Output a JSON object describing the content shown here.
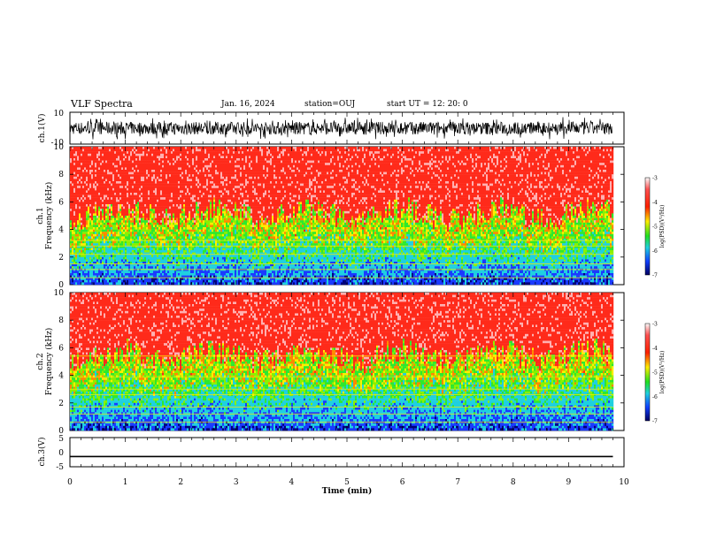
{
  "header": {
    "title": "VLF Spectra",
    "date": "Jan. 16, 2024",
    "station": "station=OUJ",
    "start": "start UT =  12: 20: 0"
  },
  "chart_data": [
    {
      "type": "line",
      "name": "ch1-waveform",
      "ylabel": "ch.1(V)",
      "ylim": [
        -10,
        10
      ],
      "yticks": [
        "10",
        "-10"
      ],
      "xlim": [
        0,
        10
      ],
      "description_values": {
        "baseline": 0,
        "approx_range": [
          -6,
          6
        ]
      }
    },
    {
      "type": "heatmap",
      "name": "ch1-spectrogram",
      "ylabel": "ch.1 Frequency (kHz)",
      "ylabel_top": "ch.1",
      "ylabel_bottom": "Frequency (kHz)",
      "ylim": [
        0,
        10
      ],
      "yticks": [
        "0",
        "2",
        "4",
        "6",
        "8",
        "10"
      ],
      "xlim": [
        0,
        9.8
      ],
      "colorbar": {
        "label": "log(PSD)(V²/Hz)",
        "range": [
          -7,
          -3
        ],
        "ticks": [
          "-3",
          "-4",
          "-5",
          "-6",
          "-7"
        ]
      },
      "bands_khz": [
        0.5,
        1.1,
        1.5,
        2.2,
        2.8,
        3.2
      ],
      "transition_khz": 4.5
    },
    {
      "type": "heatmap",
      "name": "ch2-spectrogram",
      "ylabel": "ch.2 Frequency (kHz)",
      "ylabel_top": "ch.2",
      "ylabel_bottom": "Frequency (kHz)",
      "ylim": [
        0,
        10
      ],
      "yticks": [
        "0",
        "2",
        "4",
        "6",
        "8",
        "10"
      ],
      "xlim": [
        0,
        9.8
      ],
      "colorbar": {
        "label": "log(PSD)(V²/Hz)",
        "range": [
          -7,
          -3
        ],
        "ticks": [
          "-3",
          "-4",
          "-5",
          "-6",
          "-7"
        ]
      },
      "bands_khz": [
        0.6,
        1.2,
        1.7,
        2.6,
        3.0,
        3.9,
        5.4
      ],
      "transition_khz": 4.8
    },
    {
      "type": "line",
      "name": "ch3-waveform",
      "ylabel": "ch.3(V)",
      "ylim": [
        -5,
        5
      ],
      "yticks": [
        "5",
        "0",
        "-5"
      ],
      "x": [
        0,
        9.8
      ],
      "y": [
        -1.5,
        -1.5
      ]
    }
  ],
  "xaxis": {
    "label": "Time (min)",
    "range": [
      0,
      10
    ],
    "ticks": [
      "0",
      "1",
      "2",
      "3",
      "4",
      "5",
      "6",
      "7",
      "8",
      "9",
      "10"
    ]
  },
  "colors": {
    "red": "#ff2a1a",
    "yellow": "#ffee00",
    "green": "#2ee82e",
    "cyan": "#1fd0e0",
    "blue": "#1a3aff",
    "navy": "#00007a"
  }
}
